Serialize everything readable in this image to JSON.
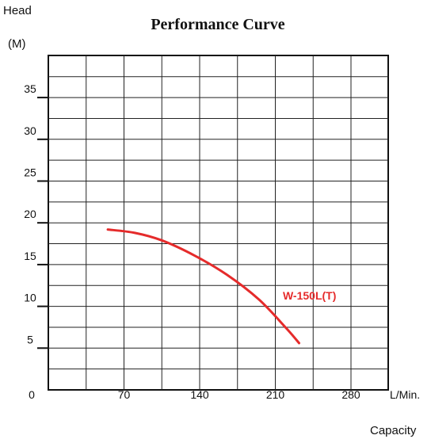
{
  "chart_data": {
    "type": "line",
    "title": "Performance Curve",
    "ylabel": "Head",
    "yunit": "(M)",
    "xlabel": "Capacity",
    "xunit": "L/Min.",
    "xlim": [
      0,
      315
    ],
    "ylim": [
      0,
      40
    ],
    "x_ticks": [
      0,
      70,
      140,
      210,
      280
    ],
    "y_ticks": [
      5,
      10,
      15,
      20,
      25,
      30,
      35
    ],
    "origin_label": "0",
    "grid": true,
    "series_color": "#e52b2b",
    "series": [
      {
        "name": "W-150L(T)",
        "x": [
          55,
          80,
          105,
          135,
          165,
          195,
          220,
          232
        ],
        "y": [
          19.2,
          18.8,
          17.9,
          16.1,
          13.8,
          10.8,
          7.4,
          5.6
        ]
      }
    ]
  }
}
